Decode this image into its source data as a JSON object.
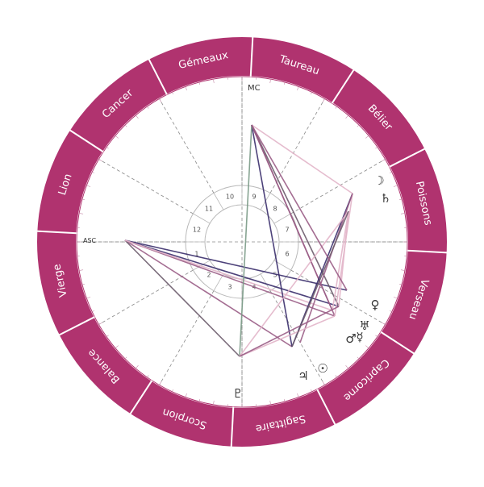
{
  "wheel": {
    "ring_color": "#b0336f",
    "sign_text_color": "#ffffff",
    "signs": [
      "Taureau",
      "Gémeaux",
      "Cancer",
      "Lion",
      "Vierge",
      "Balance",
      "Scorpion",
      "Sagittaire",
      "Capricorne",
      "Verseau",
      "Poissons",
      "Bélier"
    ]
  },
  "angles": {
    "asc": "ASC",
    "mc": "MC"
  },
  "houses": [
    "1",
    "2",
    "3",
    "4",
    "5",
    "6",
    "7",
    "8",
    "9",
    "10",
    "11",
    "12"
  ],
  "planets": [
    {
      "name": "moon",
      "glyph": "☽"
    },
    {
      "name": "saturn",
      "glyph": "♄"
    },
    {
      "name": "venus",
      "glyph": "♀"
    },
    {
      "name": "uranus",
      "glyph": "♅"
    },
    {
      "name": "mercury",
      "glyph": "☿"
    },
    {
      "name": "mars",
      "glyph": "♂"
    },
    {
      "name": "sun",
      "glyph": "☉"
    },
    {
      "name": "jupiter",
      "glyph": "♃"
    },
    {
      "name": "pluto",
      "glyph": "♇"
    }
  ],
  "aspect_colors": [
    "#3a2d6b",
    "#9a5d86",
    "#e2b5c9",
    "#7a9a86",
    "#6b5b6b"
  ]
}
